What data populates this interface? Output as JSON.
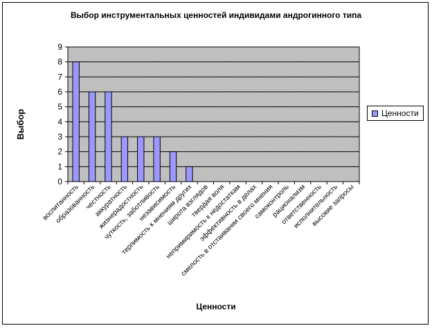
{
  "chart_data": {
    "type": "bar",
    "title": "Выбор инструментальных ценностей индивидами андрогинного типа",
    "xlabel": "Ценности",
    "ylabel": "Выбор",
    "ylim": [
      0,
      9
    ],
    "yticks": [
      "0",
      "1",
      "2",
      "3",
      "4",
      "5",
      "6",
      "7",
      "8",
      "9"
    ],
    "grid": true,
    "legend_position": "right",
    "categories": [
      "воспитанность",
      "образованность",
      "честность",
      "аккуратность",
      "жизнерадостность",
      "чуткость, заботливость",
      "независимость",
      "терпимость к мнениям других",
      "широта взглядов",
      "твердая воля",
      "непримиримость к недостаткам",
      "эффективность в делах",
      "смелость в отстаивании своего мнения",
      "самоконтроль",
      "рационализм",
      "ответственность",
      "исполнительность",
      "высокие запросы"
    ],
    "series": [
      {
        "name": "Ценности",
        "values": [
          8,
          6,
          6,
          3,
          3,
          3,
          2,
          1,
          0,
          0,
          0,
          0,
          0,
          0,
          0,
          0,
          0,
          0
        ]
      }
    ],
    "colors": {
      "bar_fill": "#9999ff",
      "plot_background": "#c0c0c0",
      "gridline": "#000000"
    }
  }
}
